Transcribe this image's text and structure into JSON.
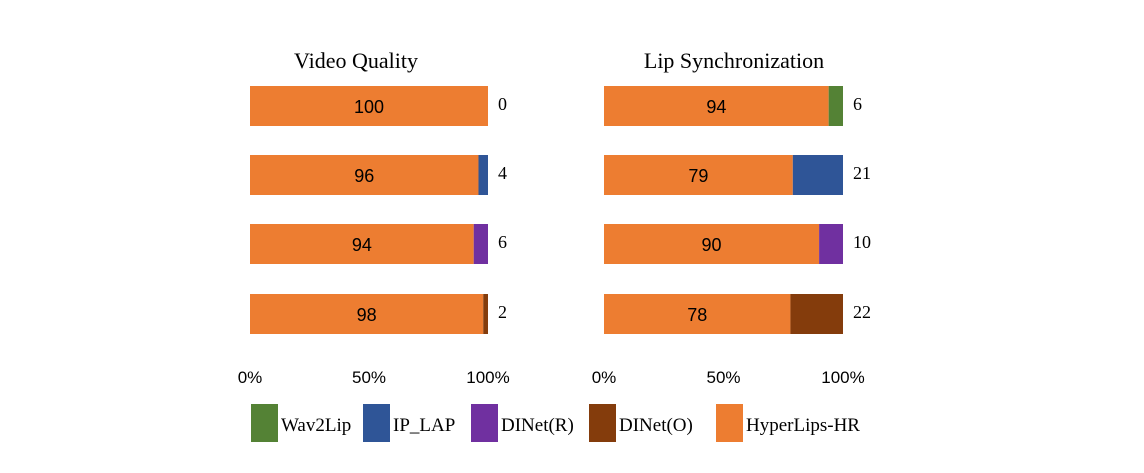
{
  "chart_data": [
    {
      "type": "bar",
      "orientation": "horizontal",
      "stacked": true,
      "title": "Video Quality",
      "xlim": [
        0,
        100
      ],
      "xticks": [
        "0%",
        "50%",
        "100%"
      ],
      "bars": [
        {
          "hyperlips": 100,
          "other": 0,
          "other_series": "Wav2Lip",
          "label_main": "100",
          "label_other": "0"
        },
        {
          "hyperlips": 96,
          "other": 4,
          "other_series": "IP_LAP",
          "label_main": "96",
          "label_other": "4"
        },
        {
          "hyperlips": 94,
          "other": 6,
          "other_series": "DINet(R)",
          "label_main": "94",
          "label_other": "6"
        },
        {
          "hyperlips": 98,
          "other": 2,
          "other_series": "DINet(O)",
          "label_main": "98",
          "label_other": "2"
        }
      ]
    },
    {
      "type": "bar",
      "orientation": "horizontal",
      "stacked": true,
      "title": "Lip Synchronization",
      "xlim": [
        0,
        100
      ],
      "xticks": [
        "0%",
        "50%",
        "100%"
      ],
      "bars": [
        {
          "hyperlips": 94,
          "other": 6,
          "other_series": "Wav2Lip",
          "label_main": "94",
          "label_other": "6"
        },
        {
          "hyperlips": 79,
          "other": 21,
          "other_series": "IP_LAP",
          "label_main": "79",
          "label_other": "21"
        },
        {
          "hyperlips": 90,
          "other": 10,
          "other_series": "DINet(R)",
          "label_main": "90",
          "label_other": "10"
        },
        {
          "hyperlips": 78,
          "other": 22,
          "other_series": "DINet(O)",
          "label_main": "78",
          "label_other": "22"
        }
      ]
    }
  ],
  "legend": {
    "placement": "bottom",
    "items": [
      {
        "name": "Wav2Lip",
        "color": "#548235"
      },
      {
        "name": "IP_LAP",
        "color": "#2F5597"
      },
      {
        "name": "DINet(R)",
        "color": "#7030A0"
      },
      {
        "name": "DINet(O)",
        "color": "#843C0C"
      },
      {
        "name": "HyperLips-HR",
        "color": "#ED7D31"
      }
    ]
  }
}
